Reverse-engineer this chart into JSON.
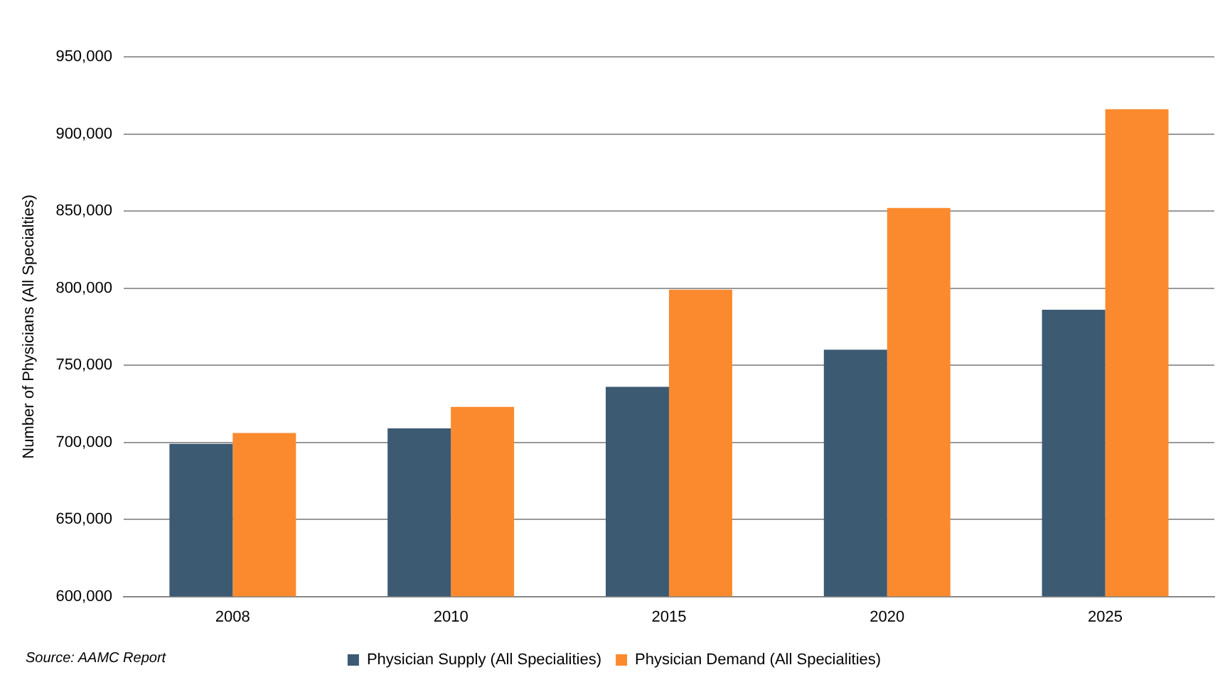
{
  "chart_data": {
    "type": "bar",
    "ylabel": "Number of Physicians (All Specialties)",
    "categories": [
      "2008",
      "2010",
      "2015",
      "2020",
      "2025"
    ],
    "series": [
      {
        "name": "Physician Supply (All Specialities)",
        "color": "#3d5a73",
        "values": [
          699000,
          709000,
          736000,
          760000,
          786000
        ]
      },
      {
        "name": "Physician Demand (All Specialities)",
        "color": "#fb8a2e",
        "values": [
          706000,
          723000,
          799000,
          852000,
          916000
        ]
      }
    ],
    "ylim": [
      600000,
      950000
    ],
    "yticks": [
      {
        "value": 600000,
        "label": "600,000"
      },
      {
        "value": 650000,
        "label": "650,000"
      },
      {
        "value": 700000,
        "label": "700,000"
      },
      {
        "value": 750000,
        "label": "750,000"
      },
      {
        "value": 800000,
        "label": "800,000"
      },
      {
        "value": 850000,
        "label": "850,000"
      },
      {
        "value": 900000,
        "label": "900,000"
      },
      {
        "value": 950000,
        "label": "950,000"
      }
    ],
    "grid": "y",
    "legend": "bottom",
    "annotations": [
      "Source: AAMC Report"
    ]
  }
}
